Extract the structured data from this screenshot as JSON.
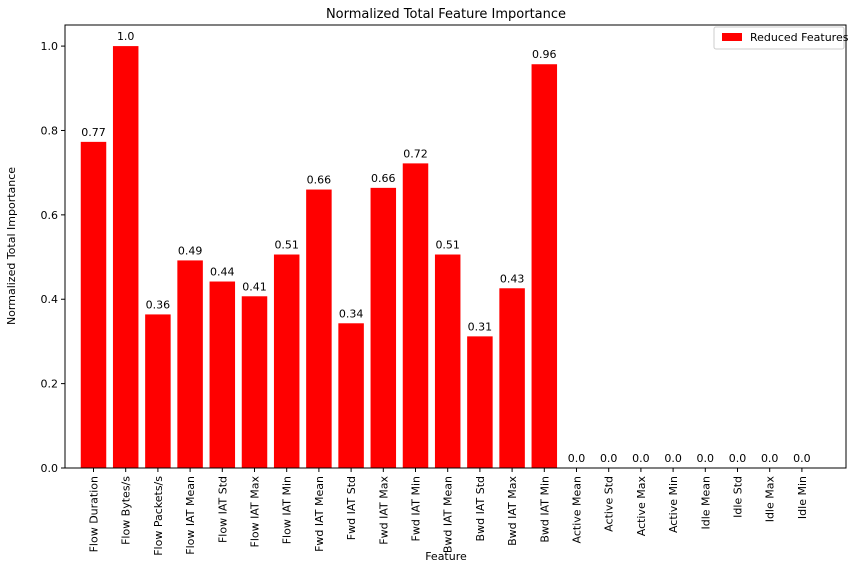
{
  "chart_data": {
    "type": "bar",
    "title": "Normalized Total Feature Importance",
    "xlabel": "Feature",
    "ylabel": "Normalized Total Importance",
    "ylim": [
      0,
      1.05
    ],
    "yticks": [
      "0.0",
      "0.2",
      "0.4",
      "0.6",
      "0.8",
      "1.0"
    ],
    "grid": false,
    "legend_position": "top-right",
    "bar_color": "#ff0000",
    "categories": [
      "Flow Duration",
      "Flow Bytes/s",
      "Flow Packets/s",
      "Flow IAT Mean",
      "Flow IAT Std",
      "Flow IAT Max",
      "Flow IAT Min",
      "Fwd IAT Mean",
      "Fwd IAT Std",
      "Fwd IAT Max",
      "Fwd IAT Min",
      "Bwd IAT Mean",
      "Bwd IAT Std",
      "Bwd IAT Max",
      "Bwd IAT Min",
      "Active Mean",
      "Active Std",
      "Active Max",
      "Active Min",
      "Idle Mean",
      "Idle Std",
      "Idle Max",
      "Idle Min"
    ],
    "series": [
      {
        "name": "Reduced Features",
        "values": [
          0.773,
          1.0,
          0.364,
          0.492,
          0.442,
          0.407,
          0.506,
          0.66,
          0.343,
          0.664,
          0.722,
          0.506,
          0.312,
          0.426,
          0.957,
          0,
          0,
          0,
          0,
          0,
          0,
          0,
          0
        ],
        "labels": [
          "0.77",
          "1.0",
          "0.36",
          "0.49",
          "0.44",
          "0.41",
          "0.51",
          "0.66",
          "0.34",
          "0.66",
          "0.72",
          "0.51",
          "0.31",
          "0.43",
          "0.96",
          "0.0",
          "0.0",
          "0.0",
          "0.0",
          "0.0",
          "0.0",
          "0.0",
          "0.0"
        ]
      }
    ]
  }
}
